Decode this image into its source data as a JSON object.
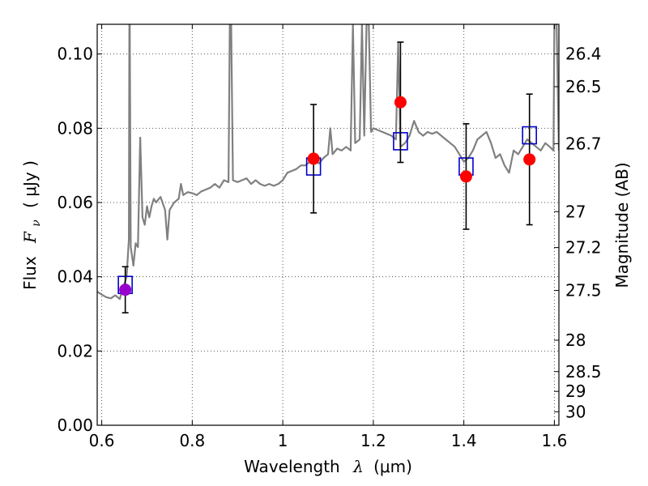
{
  "chart_data": {
    "type": "scatter",
    "xlabel": "Wavelength",
    "xlabel_symbol": "λ",
    "xlabel_unit": "(μm)",
    "ylabel": "Flux",
    "ylabel_symbol": "F",
    "ylabel_sub": "ν",
    "ylabel_unit": "( μJy )",
    "y2label": "Magnitude (AB)",
    "xlim": [
      0.59,
      1.61
    ],
    "ylim": [
      0.0,
      0.108
    ],
    "grid": true,
    "x_ticks": [
      0.6,
      0.8,
      1.0,
      1.2,
      1.4,
      1.6
    ],
    "x_tick_labels": [
      "0.6",
      "0.8",
      "1",
      "1.2",
      "1.4",
      "1.6"
    ],
    "y_ticks": [
      0.0,
      0.02,
      0.04,
      0.06,
      0.08,
      0.1
    ],
    "y_tick_labels": [
      "0.00",
      "0.02",
      "0.04",
      "0.06",
      "0.08",
      "0.10"
    ],
    "y2_ticks": [
      26.4,
      26.5,
      26.7,
      27,
      27.2,
      27.5,
      28,
      28.5,
      29,
      30
    ],
    "y2_tick_labels": [
      "26.4",
      "26.5",
      "26.7",
      "27",
      "27.2",
      "27.5",
      "28",
      "28.5",
      "29",
      "30"
    ],
    "colors": {
      "spectrum": "#808080",
      "observed": "#ff0000",
      "observed_first": "#9900cc",
      "model": "#0000cc",
      "errorbar": "#000000",
      "grid": "#555555"
    },
    "series": [
      {
        "kind": "spectrum_line",
        "points": [
          [
            0.59,
            0.036
          ],
          [
            0.6,
            0.0352
          ],
          [
            0.61,
            0.0345
          ],
          [
            0.62,
            0.0342
          ],
          [
            0.63,
            0.035
          ],
          [
            0.64,
            0.034
          ],
          [
            0.645,
            0.0362
          ],
          [
            0.65,
            0.038
          ],
          [
            0.655,
            0.04
          ],
          [
            0.66,
            0.05
          ],
          [
            0.661,
            0.108
          ],
          [
            0.662,
            0.108
          ],
          [
            0.664,
            0.048
          ],
          [
            0.67,
            0.043
          ],
          [
            0.675,
            0.049
          ],
          [
            0.68,
            0.048
          ],
          [
            0.685,
            0.0775
          ],
          [
            0.69,
            0.056
          ],
          [
            0.695,
            0.054
          ],
          [
            0.7,
            0.059
          ],
          [
            0.705,
            0.056
          ],
          [
            0.71,
            0.059
          ],
          [
            0.715,
            0.061
          ],
          [
            0.72,
            0.06
          ],
          [
            0.73,
            0.0615
          ],
          [
            0.74,
            0.058
          ],
          [
            0.745,
            0.05
          ],
          [
            0.75,
            0.058
          ],
          [
            0.76,
            0.06
          ],
          [
            0.77,
            0.061
          ],
          [
            0.775,
            0.065
          ],
          [
            0.78,
            0.062
          ],
          [
            0.79,
            0.0628
          ],
          [
            0.8,
            0.0625
          ],
          [
            0.81,
            0.062
          ],
          [
            0.82,
            0.063
          ],
          [
            0.83,
            0.0635
          ],
          [
            0.84,
            0.064
          ],
          [
            0.85,
            0.065
          ],
          [
            0.86,
            0.064
          ],
          [
            0.87,
            0.066
          ],
          [
            0.88,
            0.0655
          ],
          [
            0.883,
            0.108
          ],
          [
            0.886,
            0.108
          ],
          [
            0.89,
            0.066
          ],
          [
            0.9,
            0.0655
          ],
          [
            0.91,
            0.066
          ],
          [
            0.92,
            0.0665
          ],
          [
            0.93,
            0.065
          ],
          [
            0.94,
            0.066
          ],
          [
            0.95,
            0.065
          ],
          [
            0.96,
            0.0645
          ],
          [
            0.97,
            0.065
          ],
          [
            0.98,
            0.0645
          ],
          [
            0.99,
            0.065
          ],
          [
            1.0,
            0.066
          ],
          [
            1.01,
            0.068
          ],
          [
            1.02,
            0.0685
          ],
          [
            1.03,
            0.069
          ],
          [
            1.04,
            0.07
          ],
          [
            1.05,
            0.07
          ],
          [
            1.06,
            0.071
          ],
          [
            1.07,
            0.0715
          ],
          [
            1.08,
            0.0705
          ],
          [
            1.09,
            0.072
          ],
          [
            1.1,
            0.073
          ],
          [
            1.105,
            0.08
          ],
          [
            1.11,
            0.073
          ],
          [
            1.12,
            0.0745
          ],
          [
            1.13,
            0.074
          ],
          [
            1.14,
            0.075
          ],
          [
            1.15,
            0.074
          ],
          [
            1.155,
            0.108
          ],
          [
            1.16,
            0.076
          ],
          [
            1.17,
            0.077
          ],
          [
            1.175,
            0.108
          ],
          [
            1.18,
            0.078
          ],
          [
            1.185,
            0.108
          ],
          [
            1.19,
            0.108
          ],
          [
            1.195,
            0.079
          ],
          [
            1.2,
            0.08
          ],
          [
            1.21,
            0.0795
          ],
          [
            1.22,
            0.079
          ],
          [
            1.23,
            0.0785
          ],
          [
            1.24,
            0.078
          ],
          [
            1.25,
            0.077
          ],
          [
            1.255,
            0.103
          ],
          [
            1.26,
            0.075
          ],
          [
            1.27,
            0.076
          ],
          [
            1.28,
            0.078
          ],
          [
            1.29,
            0.082
          ],
          [
            1.3,
            0.079
          ],
          [
            1.31,
            0.078
          ],
          [
            1.32,
            0.079
          ],
          [
            1.33,
            0.0785
          ],
          [
            1.34,
            0.079
          ],
          [
            1.35,
            0.078
          ],
          [
            1.36,
            0.077
          ],
          [
            1.37,
            0.076
          ],
          [
            1.38,
            0.075
          ],
          [
            1.39,
            0.073
          ],
          [
            1.4,
            0.071
          ],
          [
            1.41,
            0.072
          ],
          [
            1.42,
            0.074
          ],
          [
            1.43,
            0.077
          ],
          [
            1.44,
            0.078
          ],
          [
            1.45,
            0.079
          ],
          [
            1.46,
            0.076
          ],
          [
            1.47,
            0.072
          ],
          [
            1.48,
            0.073
          ],
          [
            1.49,
            0.07
          ],
          [
            1.5,
            0.068
          ],
          [
            1.51,
            0.074
          ],
          [
            1.52,
            0.073
          ],
          [
            1.53,
            0.075
          ],
          [
            1.54,
            0.077
          ],
          [
            1.55,
            0.076
          ],
          [
            1.56,
            0.075
          ],
          [
            1.57,
            0.074
          ],
          [
            1.58,
            0.076
          ],
          [
            1.59,
            0.075
          ],
          [
            1.598,
            0.074
          ],
          [
            1.6,
            0.108
          ],
          [
            1.605,
            0.108
          ],
          [
            1.61,
            0.074
          ]
        ]
      },
      {
        "kind": "observed_points",
        "x": [
          0.652,
          1.068,
          1.26,
          1.405,
          1.545
        ],
        "y": [
          0.0365,
          0.0718,
          0.087,
          0.067,
          0.0716
        ],
        "err": [
          0.0062,
          0.0146,
          0.0162,
          0.0142,
          0.0176
        ]
      },
      {
        "kind": "model_squares",
        "x": [
          0.652,
          1.068,
          1.26,
          1.405,
          1.545
        ],
        "y": [
          0.0378,
          0.0697,
          0.0765,
          0.0697,
          0.0781
        ]
      }
    ]
  }
}
